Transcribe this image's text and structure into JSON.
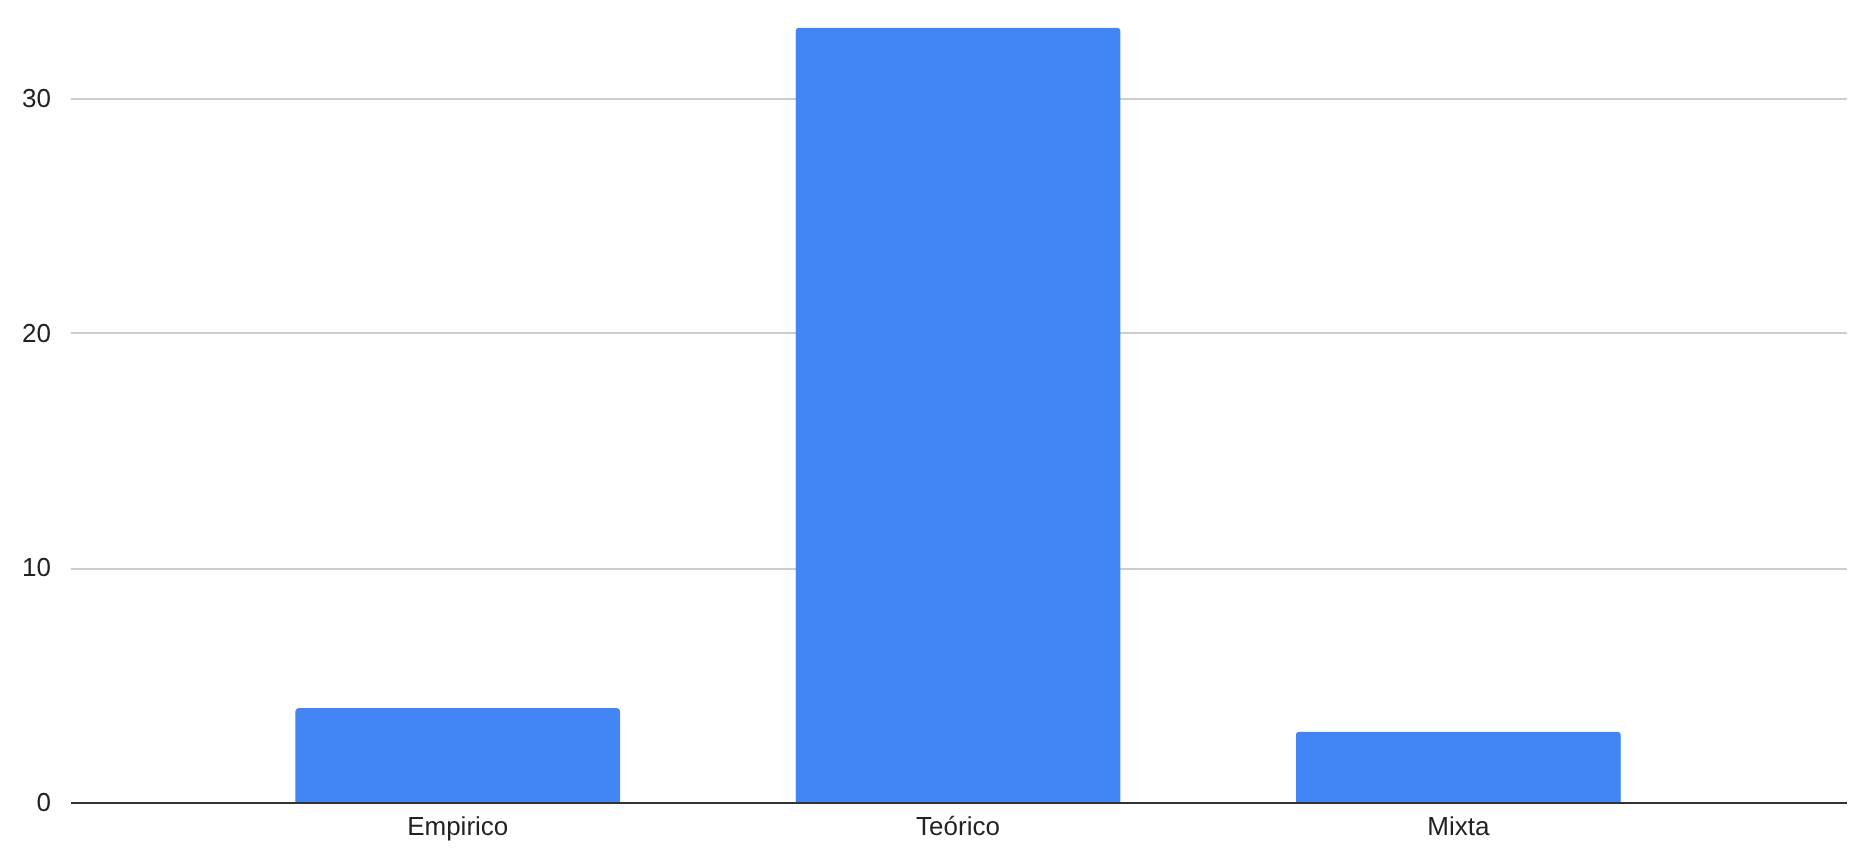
{
  "chart_data": {
    "type": "bar",
    "categories": [
      "Empirico",
      "Teórico",
      "Mixta"
    ],
    "values": [
      4,
      33,
      3
    ],
    "color": "#4285f4",
    "ylim": [
      0,
      34
    ],
    "yticks": [
      0,
      10,
      20,
      30
    ],
    "grid": "y"
  }
}
